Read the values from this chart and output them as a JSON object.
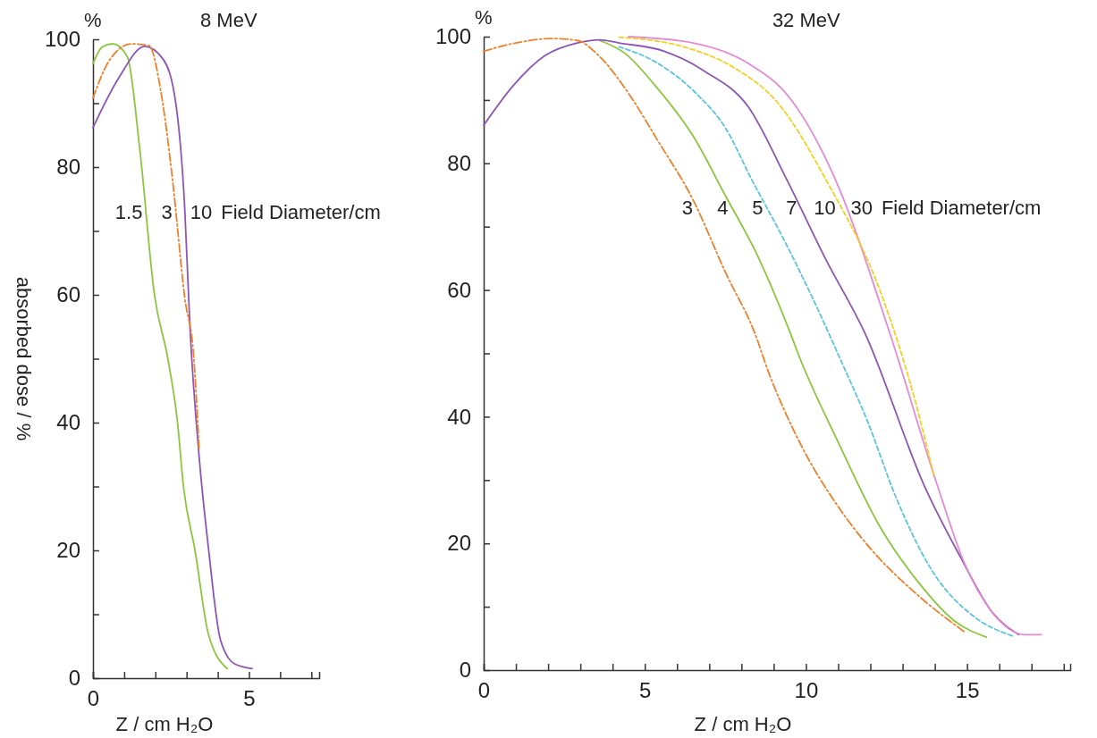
{
  "chart_data": [
    {
      "type": "line",
      "title": "8 MeV",
      "xlabel": "Z / cm H₂O",
      "ylabel": "absorbed dose / %",
      "annotations": [
        "%",
        "Field Diameter/cm"
      ],
      "xlim": [
        0,
        7.25
      ],
      "ylim": [
        0,
        100
      ],
      "xticks": [
        0,
        {
          "value": 1,
          "label": null
        },
        {
          "value": 2,
          "label": null
        },
        {
          "value": 3,
          "label": null
        },
        {
          "value": 4,
          "label": null
        },
        5,
        {
          "value": 6,
          "label": null
        },
        {
          "value": 7,
          "label": null
        }
      ],
      "yticks": [
        0,
        {
          "value": 10,
          "label": null
        },
        20,
        {
          "value": 30,
          "label": null
        },
        40,
        {
          "value": 50,
          "label": null
        },
        60,
        {
          "value": 70,
          "label": null
        },
        80,
        {
          "value": 90,
          "label": null
        },
        100
      ],
      "grid": false,
      "legend": false,
      "series": [
        {
          "name": "1.5",
          "color": "#8cc63f",
          "line_style": "solid",
          "x": [
            0,
            0.3,
            0.63,
            1.1,
            1.5,
            1.97,
            2.4,
            2.71,
            2.9,
            3.27,
            3.7,
            4.3
          ],
          "values": [
            96.2,
            98.8,
            99.3,
            97.3,
            82.8,
            60,
            50,
            40,
            30,
            20,
            6.9,
            1.5
          ]
        },
        {
          "name": "3",
          "color": "#f07f2a",
          "line_style": "dashdot",
          "x": [
            0,
            0.5,
            1.23,
            1.8,
            2.17,
            2.55,
            2.94,
            3.23,
            3.4
          ],
          "values": [
            90.8,
            96.5,
            99.3,
            99,
            92,
            78,
            59.6,
            50.2,
            36
          ]
        },
        {
          "name": "10",
          "color": "#8e55b5",
          "line_style": "solid",
          "x": [
            0,
            0.83,
            1.66,
            2.26,
            2.66,
            2.94,
            3.11,
            3.4,
            3.7,
            4.09,
            4.55,
            5.1
          ],
          "values": [
            86.2,
            94,
            98.9,
            96.8,
            89.8,
            73.6,
            54.8,
            34.8,
            20.4,
            5.9,
            2.2,
            1.5
          ]
        }
      ]
    },
    {
      "type": "line",
      "title": "32 MeV",
      "xlabel": "Z / cm H₂O",
      "annotations": [
        "%",
        "Field Diameter/cm"
      ],
      "xlim": [
        0,
        18.2
      ],
      "ylim": [
        0,
        100
      ],
      "xticks": [
        0,
        {
          "value": 1,
          "label": null
        },
        {
          "value": 2,
          "label": null
        },
        {
          "value": 3,
          "label": null
        },
        {
          "value": 4,
          "label": null
        },
        5,
        {
          "value": 6,
          "label": null
        },
        {
          "value": 7,
          "label": null
        },
        {
          "value": 8,
          "label": null
        },
        {
          "value": 9,
          "label": null
        },
        10,
        {
          "value": 11,
          "label": null
        },
        {
          "value": 12,
          "label": null
        },
        {
          "value": 13,
          "label": null
        },
        {
          "value": 14,
          "label": null
        },
        15,
        {
          "value": 16,
          "label": null
        },
        {
          "value": 17,
          "label": null
        },
        {
          "value": 18,
          "label": null
        }
      ],
      "yticks": [
        0,
        {
          "value": 10,
          "label": null
        },
        20,
        {
          "value": 30,
          "label": null
        },
        40,
        {
          "value": 50,
          "label": null
        },
        60,
        {
          "value": 70,
          "label": null
        },
        80,
        {
          "value": 90,
          "label": null
        },
        100
      ],
      "grid": false,
      "legend": false,
      "series": [
        {
          "name": "3",
          "color": "#f07f2a",
          "line_style": "dashdot",
          "x": [
            0,
            1,
            2.13,
            2.9,
            3.57,
            4.5,
            5.4,
            6.5,
            7.5,
            8.5,
            8.7,
            9.8,
            11,
            12,
            13.5,
            14.9
          ],
          "values": [
            97.7,
            99,
            99.7,
            99.4,
            97,
            91,
            83.6,
            74.2,
            62.8,
            52,
            49,
            36,
            25.8,
            19.2,
            11.7,
            6.1
          ]
        },
        {
          "name": "4",
          "color": "#8cc63f",
          "line_style": "solid",
          "x": [
            3.6,
            4.4,
            5.3,
            6.5,
            7.5,
            8.5,
            9.5,
            9.8,
            11,
            12.3,
            13.5,
            14.6,
            15.6
          ],
          "values": [
            99.4,
            97.3,
            92.4,
            84.3,
            74.9,
            65.4,
            53.4,
            49.4,
            36,
            22.6,
            13.8,
            7.8,
            5.2
          ]
        },
        {
          "name": "5",
          "color": "#5bc4e0",
          "line_style": "dashed",
          "x": [
            4.2,
            5.4,
            6.6,
            7.5,
            8.3,
            9.3,
            10.2,
            11.1,
            11.9,
            12.8,
            13.9,
            15.2,
            16.4
          ],
          "values": [
            98.4,
            95.8,
            91,
            85.6,
            77.6,
            68.1,
            58.8,
            48.7,
            39.4,
            27.2,
            15.8,
            8.5,
            5.4
          ]
        },
        {
          "name": "7",
          "color": "#8e55b5",
          "line_style": "solid",
          "x": [
            0,
            0.94,
            1.9,
            2.9,
            3.6,
            4.2,
            5.6,
            6.9,
            8.2,
            9.39,
            10.6,
            11.83,
            13.7,
            14.8,
            15.8,
            16.6
          ],
          "values": [
            86,
            92.4,
            97,
            99,
            99.5,
            99,
            97.7,
            94.4,
            89,
            77.6,
            65,
            53.2,
            28.8,
            17.8,
            9,
            5.6
          ]
        },
        {
          "name": "10",
          "color": "#f5d020",
          "line_style": "dashed",
          "x": [
            4.2,
            6.2,
            7.8,
            9.1,
            10.6,
            12.4,
            13.4,
            13.96
          ],
          "values": [
            99.9,
            98.4,
            95,
            89.7,
            77.6,
            58.5,
            42.3,
            30.9
          ]
        },
        {
          "name": "30",
          "color": "#e58ad6",
          "line_style": "solid",
          "x": [
            4.5,
            6.5,
            8.2,
            9.5,
            10.9,
            12.6,
            14.1,
            14.9,
            15.8,
            16.8,
            17.3
          ],
          "values": [
            100,
            99,
            95.8,
            90.3,
            77.6,
            53.2,
            28.8,
            17.1,
            9,
            5.6,
            5.6
          ]
        }
      ]
    }
  ]
}
